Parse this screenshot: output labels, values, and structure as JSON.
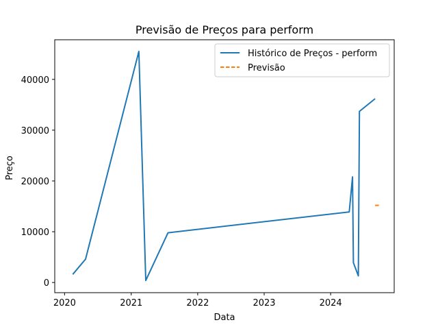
{
  "chart_data": {
    "type": "line",
    "title": "Previsão de Preços para perform",
    "xlabel": "Data",
    "ylabel": "Preço",
    "xlim": [
      "2019-11-08",
      "2024-12-15"
    ],
    "ylim": [
      -2000,
      47800
    ],
    "x_ticks": [
      "2020",
      "2021",
      "2022",
      "2023",
      "2024"
    ],
    "x_tick_dates": [
      "2020-01-01",
      "2021-01-01",
      "2022-01-01",
      "2023-01-01",
      "2024-01-01"
    ],
    "y_ticks": [
      0,
      10000,
      20000,
      30000,
      40000
    ],
    "grid": false,
    "legend_position": "upper right",
    "series": [
      {
        "name": "Histórico de Preços - perform",
        "color": "#1f77b4",
        "style": "solid",
        "points": [
          {
            "x": "2020-02-15",
            "y": 1600
          },
          {
            "x": "2020-04-25",
            "y": 4600
          },
          {
            "x": "2021-02-12",
            "y": 45500
          },
          {
            "x": "2021-03-22",
            "y": 400
          },
          {
            "x": "2021-07-22",
            "y": 9800
          },
          {
            "x": "2024-04-12",
            "y": 13900
          },
          {
            "x": "2024-04-30",
            "y": 20800
          },
          {
            "x": "2024-05-05",
            "y": 3900
          },
          {
            "x": "2024-06-01",
            "y": 1300
          },
          {
            "x": "2024-06-07",
            "y": 33700
          },
          {
            "x": "2024-09-01",
            "y": 36200
          }
        ]
      },
      {
        "name": "Previsão",
        "color": "#ff7f0e",
        "style": "dashed",
        "points": [
          {
            "x": "2024-09-01",
            "y": 15200
          },
          {
            "x": "2024-09-30",
            "y": 15200
          }
        ]
      }
    ]
  }
}
